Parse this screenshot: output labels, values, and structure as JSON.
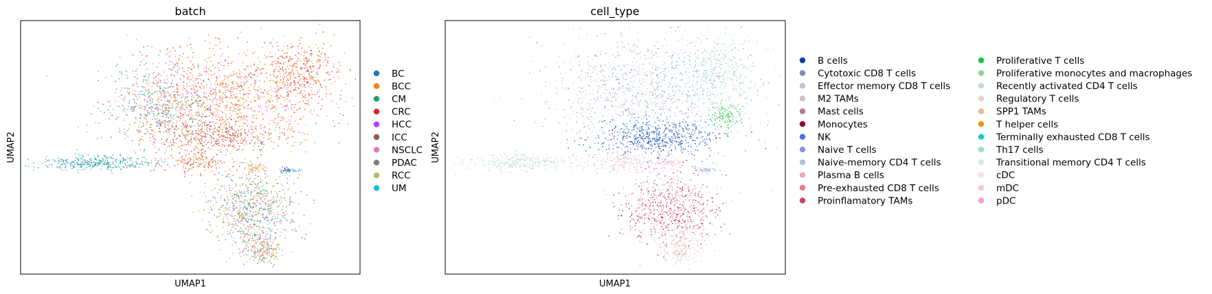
{
  "chart_data": [
    {
      "type": "scatter",
      "title": "batch",
      "xlabel": "UMAP1",
      "ylabel": "UMAP2",
      "grid": false,
      "ticks": false,
      "legend_position": "right",
      "legend": [
        {
          "label": "BC",
          "color": "#1f77b4"
        },
        {
          "label": "BCC",
          "color": "#ff7f0e"
        },
        {
          "label": "CM",
          "color": "#279e68"
        },
        {
          "label": "CRC",
          "color": "#d62728"
        },
        {
          "label": "HCC",
          "color": "#aa40fc"
        },
        {
          "label": "ICC",
          "color": "#8c564b"
        },
        {
          "label": "NSCLC",
          "color": "#e377c2"
        },
        {
          "label": "PDAC",
          "color": "#7f7f7f"
        },
        {
          "label": "RCC",
          "color": "#b5bd61"
        },
        {
          "label": "UM",
          "color": "#17becf"
        }
      ],
      "regions": [
        {
          "cx": 0.62,
          "cy": 0.3,
          "rx": 0.27,
          "ry": 0.19,
          "n": 1100,
          "colors": [
            "#ff7f0e",
            "#d62728",
            "#e377c2",
            "#ff7f0e"
          ]
        },
        {
          "cx": 0.42,
          "cy": 0.33,
          "rx": 0.15,
          "ry": 0.17,
          "n": 650,
          "colors": [
            "#e377c2",
            "#279e68",
            "#ff7f0e",
            "#1f77b4"
          ]
        },
        {
          "cx": 0.82,
          "cy": 0.2,
          "rx": 0.11,
          "ry": 0.12,
          "n": 350,
          "colors": [
            "#ff7f0e",
            "#d62728"
          ]
        },
        {
          "cx": 0.58,
          "cy": 0.46,
          "rx": 0.19,
          "ry": 0.06,
          "n": 380,
          "colors": [
            "#ff7f0e",
            "#d62728",
            "#8c564b"
          ]
        },
        {
          "cx": 0.52,
          "cy": 0.56,
          "rx": 0.1,
          "ry": 0.04,
          "n": 150,
          "colors": [
            "#ff7f0e",
            "#d62728"
          ]
        },
        {
          "cx": 0.22,
          "cy": 0.56,
          "rx": 0.16,
          "ry": 0.03,
          "n": 320,
          "colors": [
            "#279e68",
            "#1f77b4",
            "#17becf"
          ]
        },
        {
          "cx": 0.68,
          "cy": 0.74,
          "rx": 0.13,
          "ry": 0.15,
          "n": 750,
          "colors": [
            "#b5bd61",
            "#279e68",
            "#ff7f0e",
            "#1f77b4",
            "#e377c2"
          ]
        },
        {
          "cx": 0.71,
          "cy": 0.9,
          "rx": 0.05,
          "ry": 0.07,
          "n": 200,
          "colors": [
            "#279e68",
            "#ff7f0e",
            "#e377c2"
          ]
        },
        {
          "cx": 0.69,
          "cy": 0.58,
          "rx": 0.03,
          "ry": 0.02,
          "n": 50,
          "colors": [
            "#ff7f0e",
            "#b5bd61"
          ]
        },
        {
          "cx": 0.79,
          "cy": 0.59,
          "rx": 0.03,
          "ry": 0.01,
          "n": 40,
          "colors": [
            "#1f77b4"
          ]
        }
      ]
    },
    {
      "type": "scatter",
      "title": "cell_type",
      "xlabel": "UMAP1",
      "ylabel": "UMAP2",
      "grid": false,
      "ticks": false,
      "legend_position": "right",
      "legend": [
        {
          "label": "B cells",
          "color": "#023fa5"
        },
        {
          "label": "Cytotoxic CD8 T cells",
          "color": "#7d87b9"
        },
        {
          "label": "Effector memory CD8 T cells",
          "color": "#bec1d4"
        },
        {
          "label": "M2 TAMs",
          "color": "#d6bcc0"
        },
        {
          "label": "Mast cells",
          "color": "#bb7784"
        },
        {
          "label": "Monocytes",
          "color": "#8e063b"
        },
        {
          "label": "NK",
          "color": "#4a6fe3"
        },
        {
          "label": "Naive T cells",
          "color": "#8595e1"
        },
        {
          "label": "Naive-memory CD4 T cells",
          "color": "#b5bbe3"
        },
        {
          "label": "Plasma B cells",
          "color": "#e6afb9"
        },
        {
          "label": "Pre-exhausted CD8 T cells",
          "color": "#e07b91"
        },
        {
          "label": "Proinflamatory TAMs",
          "color": "#d33f6a"
        },
        {
          "label": "Proliferative T cells",
          "color": "#11c638"
        },
        {
          "label": "Proliferative monocytes and macrophages",
          "color": "#8dd593"
        },
        {
          "label": "Recently activated CD4 T cells",
          "color": "#c6dec7"
        },
        {
          "label": "Regulatory T cells",
          "color": "#ead3c6"
        },
        {
          "label": "SPP1 TAMs",
          "color": "#f0b98d"
        },
        {
          "label": "T helper cells",
          "color": "#ef9708"
        },
        {
          "label": "Terminally exhausted CD8 T cells",
          "color": "#0fcfc0"
        },
        {
          "label": "Th17 cells",
          "color": "#9cded6"
        },
        {
          "label": "Transitional memory CD4 T cells",
          "color": "#d5eae7"
        },
        {
          "label": "cDC",
          "color": "#f3e1eb"
        },
        {
          "label": "mDC",
          "color": "#f6c4e1"
        },
        {
          "label": "pDC",
          "color": "#f79cd4"
        }
      ],
      "regions": [
        {
          "cx": 0.6,
          "cy": 0.28,
          "rx": 0.3,
          "ry": 0.21,
          "n": 1300,
          "colors": [
            "#bec1d4",
            "#b5bbe3",
            "#8595e1",
            "#7d87b9",
            "#d5eae7",
            "#c6dec7"
          ]
        },
        {
          "cx": 0.8,
          "cy": 0.2,
          "rx": 0.12,
          "ry": 0.13,
          "n": 330,
          "colors": [
            "#9cded6",
            "#8dd593",
            "#d5eae7",
            "#bec1d4"
          ]
        },
        {
          "cx": 0.83,
          "cy": 0.38,
          "rx": 0.05,
          "ry": 0.05,
          "n": 130,
          "colors": [
            "#11c638",
            "#8dd593"
          ]
        },
        {
          "cx": 0.62,
          "cy": 0.46,
          "rx": 0.17,
          "ry": 0.07,
          "n": 520,
          "colors": [
            "#023fa5",
            "#023fa5",
            "#4a6fe3"
          ]
        },
        {
          "cx": 0.52,
          "cy": 0.56,
          "rx": 0.1,
          "ry": 0.04,
          "n": 160,
          "colors": [
            "#e6afb9",
            "#d6bcc0",
            "#f6c4e1"
          ]
        },
        {
          "cx": 0.65,
          "cy": 0.56,
          "rx": 0.04,
          "ry": 0.02,
          "n": 60,
          "colors": [
            "#f79cd4",
            "#f6c4e1"
          ]
        },
        {
          "cx": 0.22,
          "cy": 0.56,
          "rx": 0.16,
          "ry": 0.03,
          "n": 300,
          "colors": [
            "#bec1d4",
            "#d5eae7",
            "#c6dec7"
          ]
        },
        {
          "cx": 0.66,
          "cy": 0.74,
          "rx": 0.14,
          "ry": 0.15,
          "n": 780,
          "colors": [
            "#d33f6a",
            "#e07b91",
            "#8e063b",
            "#d6bcc0",
            "#e6afb9"
          ]
        },
        {
          "cx": 0.69,
          "cy": 0.9,
          "rx": 0.05,
          "ry": 0.07,
          "n": 180,
          "colors": [
            "#d6bcc0",
            "#ead3c6",
            "#e6afb9"
          ]
        },
        {
          "cx": 0.77,
          "cy": 0.59,
          "rx": 0.03,
          "ry": 0.01,
          "n": 40,
          "colors": [
            "#bec1d4",
            "#8595e1"
          ]
        }
      ]
    }
  ]
}
